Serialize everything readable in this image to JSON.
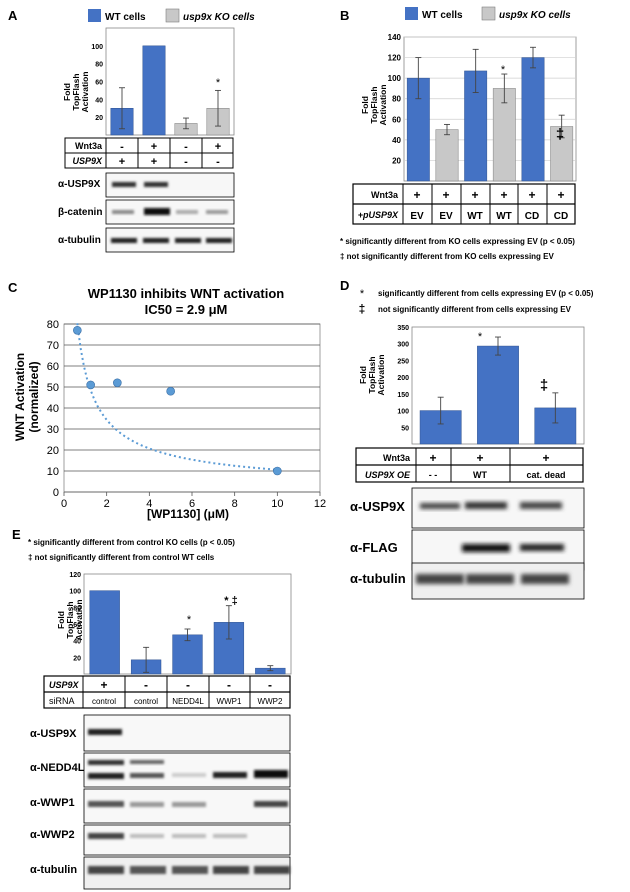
{
  "panelA": {
    "letter": "A",
    "legend": [
      "WT cells",
      "usp9x KO cells"
    ],
    "ylabel": [
      "Fold",
      "TopFlash",
      "Activation"
    ],
    "row1_label": "Wnt3a",
    "row2_label": "USP9X",
    "row1": [
      "-",
      "+",
      "-",
      "+"
    ],
    "row2": [
      "+",
      "+",
      "-",
      "-"
    ],
    "blots": [
      "α-USP9X",
      "β-catenin",
      "α-tubulin"
    ],
    "star": "*"
  },
  "panelB": {
    "letter": "B",
    "legend": [
      "WT cells",
      "usp9x KO cells"
    ],
    "ylabel": [
      "Fold",
      "TopFlash",
      "Activation"
    ],
    "row1_label": "Wnt3a",
    "row2_label": "+pUSP9X",
    "row1": [
      "+",
      "+",
      "+",
      "+",
      "+",
      "+"
    ],
    "row2": [
      "EV",
      "EV",
      "WT",
      "WT",
      "CD",
      "CD"
    ],
    "star": "*",
    "dagger": "‡",
    "note1": "* significantly different from KO cells expressing EV (p < 0.05)",
    "note2": "‡ not significantly different from KO cells expressing EV"
  },
  "panelC": {
    "letter": "C",
    "title1": "WP1130 inhibits WNT activation",
    "title2": "IC50 = 2.9 μM",
    "ylabel1": "WNT Activation",
    "ylabel2": "(normalized)",
    "xlabel": "[WP1130] (μM)"
  },
  "panelD": {
    "letter": "D",
    "note_star": "*",
    "note1": "significantly different from cells expressing EV (p < 0.05)",
    "note_dagger": "‡",
    "note2": "not significantly different from cells expressing EV",
    "ylabel": [
      "Fold",
      "TopFlash",
      "Activation"
    ],
    "row1_label": "Wnt3a",
    "row2_label": "USP9X OE",
    "row1": [
      "+",
      "+",
      "+"
    ],
    "row2": [
      "- -",
      "WT",
      "cat. dead"
    ],
    "star": "*",
    "dagger": "‡",
    "blots": [
      "α-USP9X",
      "α-FLAG",
      "α-tubulin"
    ]
  },
  "panelE": {
    "letter": "E",
    "note1": "* significantly different from control KO cells (p < 0.05)",
    "note2": "‡ not significantly different from control WT cells",
    "ylabel": [
      "Fold",
      "TopFlash",
      "Activation"
    ],
    "row1_label": "USP9X",
    "row2_label": "siRNA",
    "row1": [
      "+",
      "-",
      "-",
      "-",
      "-"
    ],
    "row2": [
      "control",
      "control",
      "NEDD4L",
      "WWP1",
      "WWP2"
    ],
    "star": "*",
    "stardagger": "* ‡",
    "blots": [
      "α-USP9X",
      "α-NEDD4L",
      "α-WWP1",
      "α-WWP2",
      "α-tubulin"
    ]
  },
  "colors": {
    "wt": "#4472c4",
    "ko": "#c8c8c8",
    "blue_edge": "#2f528f",
    "grey_edge": "#7f7f7f",
    "scatter": "#5b9bd5",
    "fit": "#5b9bd5"
  },
  "chart_data": [
    {
      "id": "A",
      "type": "bar",
      "title": "",
      "xlabel": "",
      "ylabel": "Fold TopFlash Activation",
      "ylim": [
        0,
        120
      ],
      "yticks": [
        20,
        40,
        60,
        80,
        100
      ],
      "categories": [
        "Wnt3a- USP9X+",
        "Wnt3a+ USP9X+",
        "Wnt3a- USP9X-",
        "Wnt3a+ USP9X-"
      ],
      "values": [
        30,
        100,
        13,
        30
      ],
      "errors": [
        23,
        0,
        6,
        20
      ],
      "groups": [
        "WT cells",
        "WT cells",
        "usp9x KO cells",
        "usp9x KO cells"
      ]
    },
    {
      "id": "B",
      "type": "bar",
      "title": "",
      "xlabel": "",
      "ylabel": "Fold TopFlash Activation",
      "ylim": [
        0,
        140
      ],
      "yticks": [
        20,
        40,
        60,
        80,
        100,
        120,
        140
      ],
      "categories": [
        "EV",
        "EV",
        "WT",
        "WT",
        "CD",
        "CD"
      ],
      "values": [
        100,
        50,
        107,
        90,
        120,
        53
      ],
      "errors": [
        20,
        5,
        21,
        14,
        10,
        11
      ],
      "groups": [
        "WT cells",
        "usp9x KO cells",
        "WT cells",
        "usp9x KO cells",
        "WT cells",
        "usp9x KO cells"
      ]
    },
    {
      "id": "C",
      "type": "scatter",
      "title": "WP1130 inhibits WNT activation",
      "subtitle": "IC50 = 2.9 μM",
      "xlabel": "[WP1130] (μM)",
      "ylabel": "WNT Activation (normalized)",
      "xlim": [
        0,
        12
      ],
      "ylim": [
        0,
        80
      ],
      "xticks": [
        0,
        2,
        4,
        6,
        8,
        10,
        12
      ],
      "yticks": [
        0,
        10,
        20,
        30,
        40,
        50,
        60,
        70,
        80
      ],
      "x": [
        0.625,
        1.25,
        2.5,
        5,
        10
      ],
      "y": [
        77,
        51,
        52,
        48,
        10
      ],
      "fit": {
        "type": "power",
        "a": 57,
        "b": -0.73,
        "x_range": [
          0.625,
          10
        ]
      }
    },
    {
      "id": "D",
      "type": "bar",
      "title": "",
      "xlabel": "",
      "ylabel": "Fold TopFlash Activation",
      "ylim": [
        0,
        350
      ],
      "yticks": [
        50,
        100,
        150,
        200,
        250,
        300,
        350
      ],
      "categories": [
        "- -",
        "WT",
        "cat. dead"
      ],
      "values": [
        100,
        293,
        108
      ],
      "errors": [
        40,
        27,
        45
      ]
    },
    {
      "id": "E",
      "type": "bar",
      "title": "",
      "xlabel": "",
      "ylabel": "Fold TopFlash Activation",
      "ylim": [
        0,
        120
      ],
      "yticks": [
        20,
        40,
        60,
        80,
        100,
        120
      ],
      "categories": [
        "control",
        "control",
        "NEDD4L",
        "WWP1",
        "WWP2"
      ],
      "values": [
        100,
        17,
        47,
        62,
        7
      ],
      "errors": [
        0,
        15,
        7,
        20,
        3
      ]
    }
  ]
}
